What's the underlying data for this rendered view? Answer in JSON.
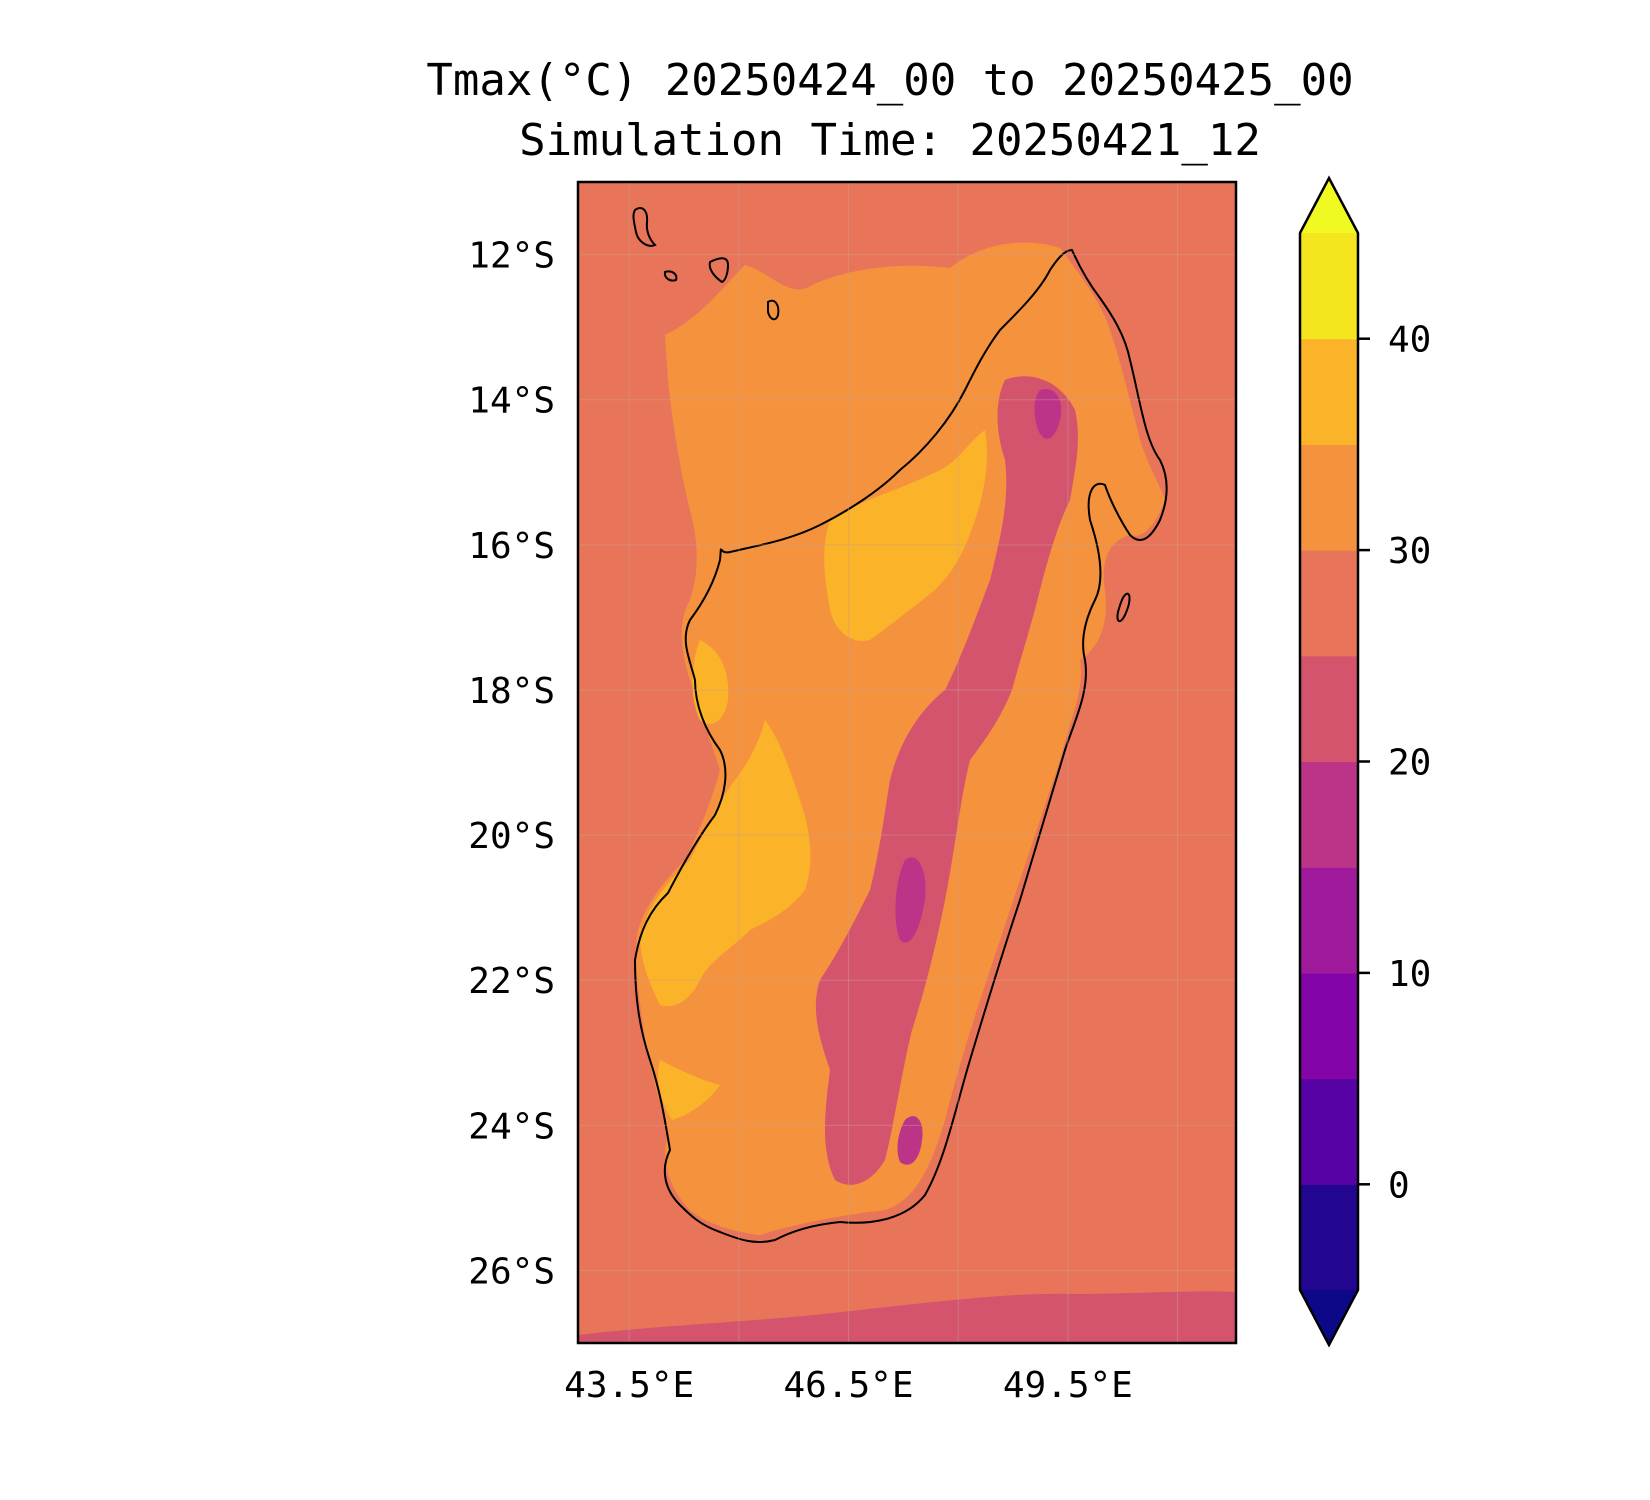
{
  "title": "Tmax(°C) 20250424_00 to 20250425_00",
  "subtitle": "Simulation Time: 20250421_12",
  "map": {
    "region": "Madagascar",
    "lon_range": [
      42.8,
      51.8
    ],
    "lat_range": [
      -27.0,
      -11.0
    ],
    "lat_ticks": [
      {
        "value": -12,
        "label": "12°S"
      },
      {
        "value": -14,
        "label": "14°S"
      },
      {
        "value": -16,
        "label": "16°S"
      },
      {
        "value": -18,
        "label": "18°S"
      },
      {
        "value": -20,
        "label": "20°S"
      },
      {
        "value": -22,
        "label": "22°S"
      },
      {
        "value": -24,
        "label": "24°S"
      },
      {
        "value": -26,
        "label": "26°S"
      }
    ],
    "lon_ticks": [
      {
        "value": 43.5,
        "label": "43.5°E"
      },
      {
        "value": 46.5,
        "label": "46.5°E"
      },
      {
        "value": 49.5,
        "label": "49.5°E"
      }
    ],
    "gridlines": true,
    "ocean_color": "#e8755a"
  },
  "colorbar": {
    "vmin": -5,
    "vmax": 45,
    "extend": "both",
    "levels": [
      {
        "from": -5,
        "to": 0,
        "color": "#22068f"
      },
      {
        "from": 0,
        "to": 5,
        "color": "#5702a4"
      },
      {
        "from": 5,
        "to": 10,
        "color": "#8405a7"
      },
      {
        "from": 10,
        "to": 15,
        "color": "#a01a9c"
      },
      {
        "from": 15,
        "to": 20,
        "color": "#bb3488"
      },
      {
        "from": 20,
        "to": 25,
        "color": "#d4546e"
      },
      {
        "from": 25,
        "to": 30,
        "color": "#e8755a"
      },
      {
        "from": 30,
        "to": 35,
        "color": "#f5923e"
      },
      {
        "from": 35,
        "to": 40,
        "color": "#fbb32a"
      },
      {
        "from": 40,
        "to": 45,
        "color": "#f4e51e"
      }
    ],
    "under_color": "#0d0887",
    "over_color": "#f0f921",
    "ticks": [
      {
        "value": 0,
        "label": "0"
      },
      {
        "value": 10,
        "label": "10"
      },
      {
        "value": 20,
        "label": "20"
      },
      {
        "value": 30,
        "label": "30"
      },
      {
        "value": 40,
        "label": "40"
      }
    ]
  }
}
